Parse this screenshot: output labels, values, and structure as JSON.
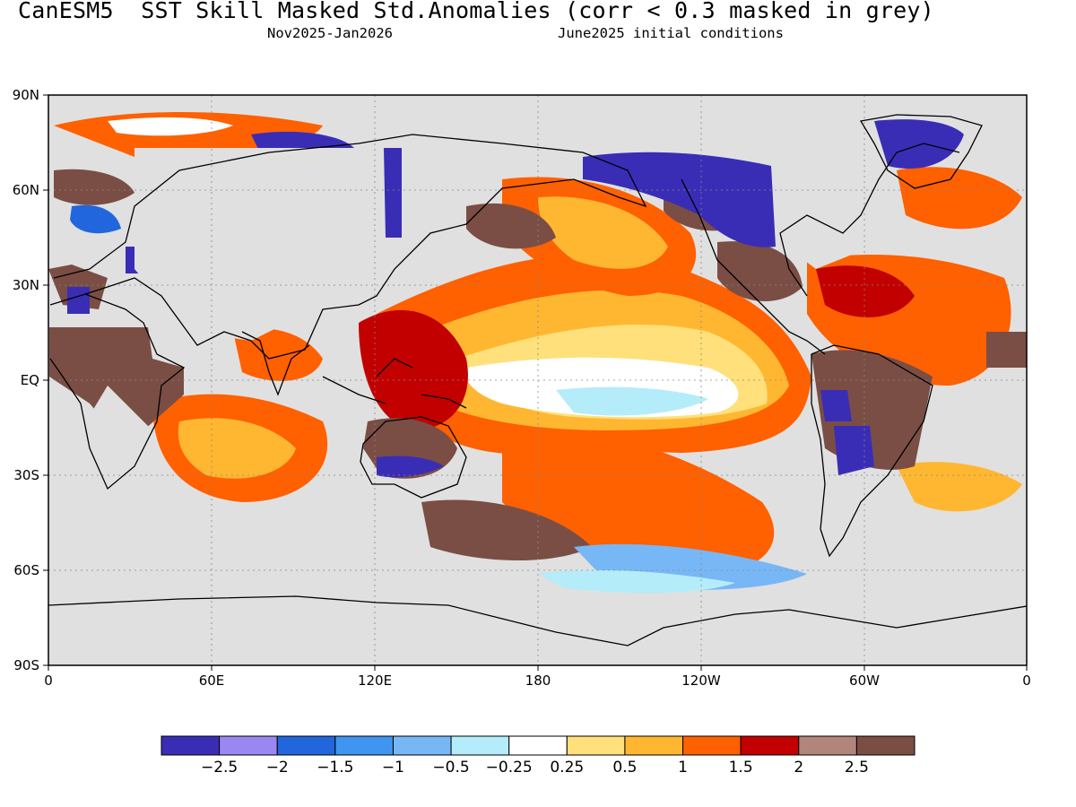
{
  "header": {
    "title": "CanESM5  SST Skill Masked Std.Anomalies (corr < 0.3 masked in grey)",
    "period": "Nov2025-Jan2026",
    "initial_conditions": "June2025 initial conditions"
  },
  "axes": {
    "lat_labels": [
      "90N",
      "60N",
      "30N",
      "EQ",
      "30S",
      "60S",
      "90S"
    ],
    "lon_labels": [
      "0",
      "60E",
      "120E",
      "180",
      "120W",
      "60W",
      "0"
    ]
  },
  "colorbar": {
    "tick_labels": [
      "-2.5",
      "-2",
      "-1.5",
      "-1",
      "-0.5",
      "-0.25",
      "0.25",
      "0.5",
      "1",
      "1.5",
      "2",
      "2.5"
    ],
    "colors": [
      "#3a2db5",
      "#9b87f2",
      "#2266dd",
      "#3f95ef",
      "#78b7f5",
      "#b4ecfa",
      "#ffffff",
      "#ffe07a",
      "#ffb732",
      "#ff6000",
      "#c20000",
      "#b1847c",
      "#7a4e45"
    ]
  },
  "map": {
    "mask_color": "#e0e0e0",
    "land_outline_color": "#000000",
    "grid": true
  }
}
